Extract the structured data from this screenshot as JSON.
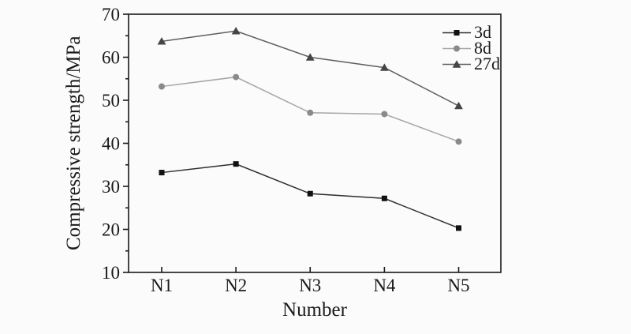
{
  "figure": {
    "background_color": "#fbfbfb",
    "text_color": "#1a1a1a",
    "axis_color": "#1a1a1a"
  },
  "chart_data": {
    "type": "line",
    "title": "",
    "xlabel": "Number",
    "ylabel": "Compressive strength/MPa",
    "categories": [
      "N1",
      "N2",
      "N3",
      "N4",
      "N5"
    ],
    "series": [
      {
        "name": "3d",
        "marker": "square",
        "line_color": "#2e2e2e",
        "marker_color": "#111111",
        "values": [
          33.2,
          35.2,
          28.3,
          27.2,
          20.3
        ]
      },
      {
        "name": "8d",
        "marker": "circle",
        "line_color": "#a6a6a6",
        "marker_color": "#8a8a8a",
        "values": [
          53.2,
          55.4,
          47.1,
          46.8,
          40.4
        ]
      },
      {
        "name": "27d",
        "marker": "triangle",
        "line_color": "#5f5f5f",
        "marker_color": "#454545",
        "values": [
          63.7,
          66.1,
          60.0,
          57.6,
          48.7
        ]
      }
    ],
    "ylim": [
      10,
      70
    ],
    "y_major_step": 10,
    "y_minor_step": 5,
    "grid": false,
    "legend_position": "top-right-inside",
    "legend_frame": false
  }
}
